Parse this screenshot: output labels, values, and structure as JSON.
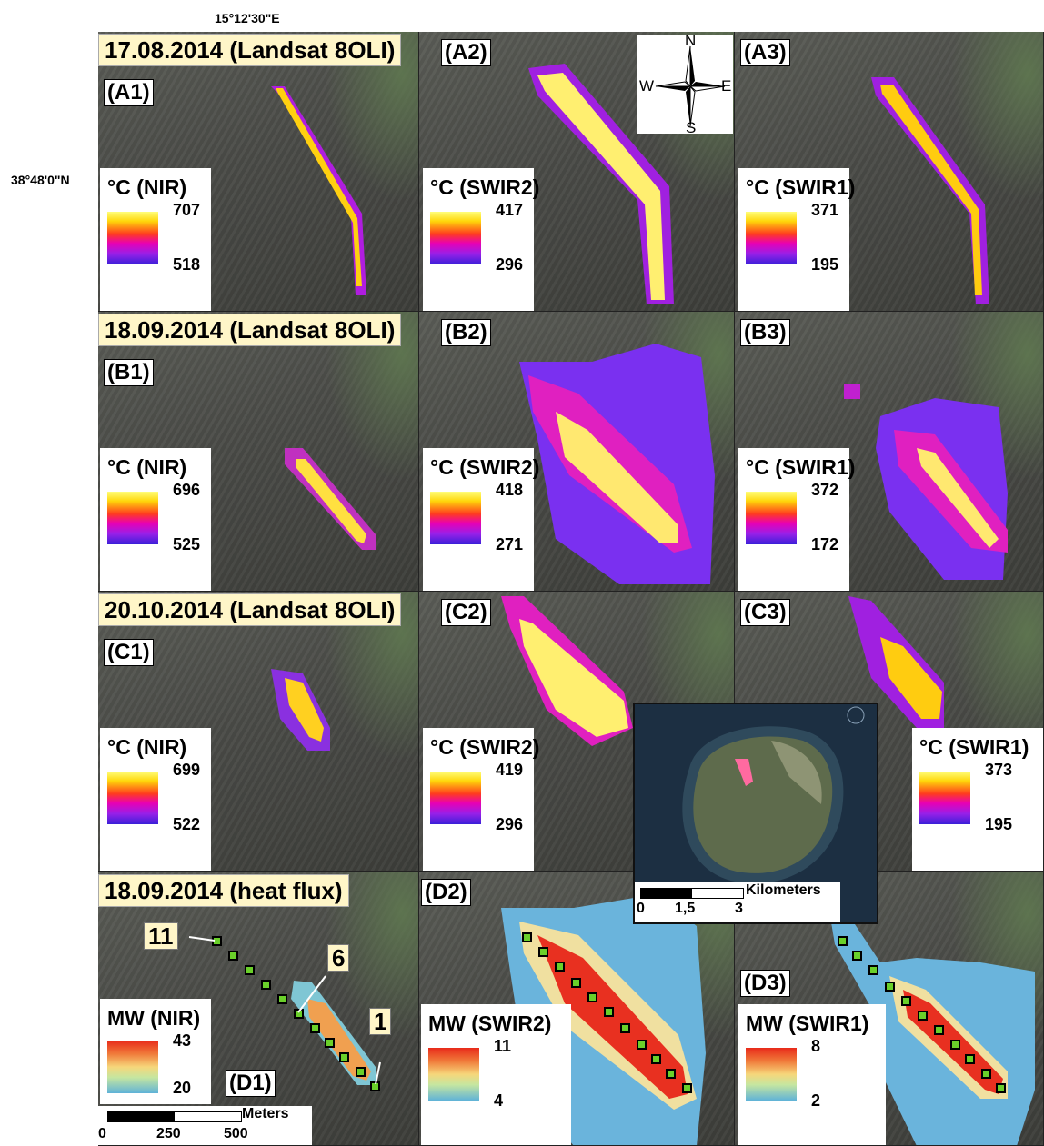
{
  "coords": {
    "lon": "15°12'30\"E",
    "lat": "38°48'0\"N"
  },
  "rows": [
    {
      "header": "17.08.2014 (Landsat 8OLI)"
    },
    {
      "header": "18.09.2014 (Landsat 8OLI)"
    },
    {
      "header": "20.10.2014 (Landsat 8OLI)"
    },
    {
      "header": "18.09.2014 (heat flux)"
    }
  ],
  "panels": {
    "A1": "(A1)",
    "A2": "(A2)",
    "A3": "(A3)",
    "B1": "(B1)",
    "B2": "(B2)",
    "B3": "(B3)",
    "C1": "(C1)",
    "C2": "(C2)",
    "C3": "(C3)",
    "D1": "(D1)",
    "D2": "(D2)",
    "D3": "(D3)"
  },
  "legends": {
    "A1": {
      "title": "°C (NIR)",
      "max": "707",
      "min": "518"
    },
    "A2": {
      "title": "°C (SWIR2)",
      "max": "417",
      "min": "296"
    },
    "A3": {
      "title": "°C (SWIR1)",
      "max": "371",
      "min": "195"
    },
    "B1": {
      "title": "°C (NIR)",
      "max": "696",
      "min": "525"
    },
    "B2": {
      "title": "°C (SWIR2)",
      "max": "418",
      "min": "271"
    },
    "B3": {
      "title": "°C (SWIR1)",
      "max": "372",
      "min": "172"
    },
    "C1": {
      "title": "°C (NIR)",
      "max": "699",
      "min": "522"
    },
    "C2": {
      "title": "°C (SWIR2)",
      "max": "419",
      "min": "296"
    },
    "C3": {
      "title": "°C (SWIR1)",
      "max": "373",
      "min": "195"
    },
    "D1": {
      "title": "MW (NIR)",
      "max": "43",
      "min": "20"
    },
    "D2": {
      "title": "MW (SWIR2)",
      "max": "11",
      "min": "4"
    },
    "D3": {
      "title": "MW (SWIR1)",
      "max": "8",
      "min": "2"
    }
  },
  "compass": {
    "n": "N",
    "s": "S",
    "e": "E",
    "w": "W"
  },
  "callouts": {
    "c11": "11",
    "c6": "6",
    "c1": "1"
  },
  "scale_m": {
    "unit": "Meters",
    "t0": "0",
    "t1": "250",
    "t2": "500"
  },
  "scale_km": {
    "unit": "Kilometers",
    "t0": "0",
    "t1": "1,5",
    "t2": "3"
  }
}
